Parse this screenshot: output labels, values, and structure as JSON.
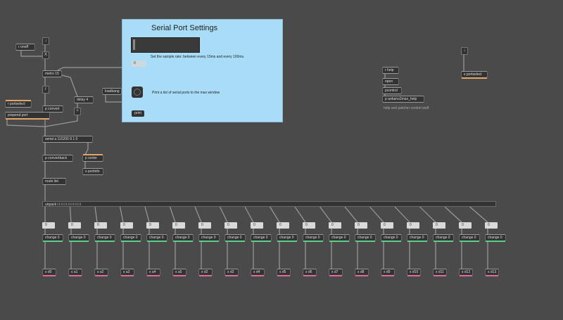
{
  "top_bang": "↓",
  "receive_onoff": "r onoff",
  "toggle_glyph": "X",
  "metro": "metro 15",
  "r_object": "r",
  "p_convert": "p convert",
  "delay": "delay 4",
  "plus": "+",
  "loadbang": "loadbang",
  "r_portselect": "r portselect",
  "prepend_port": "prepend port",
  "serial": "serial a 115200 8 1 0",
  "p_convertback": "p convertback",
  "p_sorter": "p sorter",
  "s_portinfo": "s portinfo",
  "route_list": "route list",
  "unpack_text": "unpack i i i i i i i i i i i i i i",
  "panel": {
    "title": "Serial Port Settings",
    "rate_text": "Set the sample rate: between every 15ms and every 100ms.",
    "num_value": "0",
    "print_text": "Print a list of serial ports to the max window",
    "print_label": "print"
  },
  "right_bang": "↓",
  "s_portselect": "s portselect",
  "r_help": "r help",
  "open": "open",
  "pcontrol": "pcontrol",
  "p_help": "p arduino2max_help",
  "help_comment": "help and patcher control stuff",
  "channels": [
    {
      "num": "0",
      "change": "change 0",
      "send": "s d0"
    },
    {
      "num": "0",
      "change": "change 0",
      "send": "s a1"
    },
    {
      "num": "0",
      "change": "change 0",
      "send": "s a2"
    },
    {
      "num": "0",
      "change": "change 0",
      "send": "s a3"
    },
    {
      "num": "0",
      "change": "change 0",
      "send": "s a4"
    },
    {
      "num": "0",
      "change": "change 0",
      "send": "s a5"
    },
    {
      "num": "0",
      "change": "change 0",
      "send": "s d2"
    },
    {
      "num": "0",
      "change": "change 0",
      "send": "s d3"
    },
    {
      "num": "0",
      "change": "change 0",
      "send": "s d4"
    },
    {
      "num": "0",
      "change": "change 0",
      "send": "s d5"
    },
    {
      "num": "0",
      "change": "change 0",
      "send": "s d6"
    },
    {
      "num": "0",
      "change": "change 0",
      "send": "s d7"
    },
    {
      "num": "0",
      "change": "change 0",
      "send": "s d8"
    },
    {
      "num": "0",
      "change": "change 0",
      "send": "s d9"
    },
    {
      "num": "0",
      "change": "change 0",
      "send": "s d10"
    },
    {
      "num": "0",
      "change": "change 0",
      "send": "s d11"
    },
    {
      "num": "0",
      "change": "change 0",
      "send": "s d12"
    },
    {
      "num": "0",
      "change": "change 0",
      "send": "s d13"
    }
  ]
}
